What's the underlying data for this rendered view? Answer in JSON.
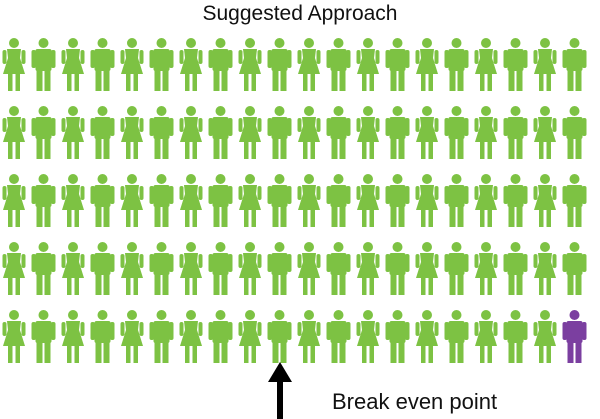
{
  "chart_data": {
    "type": "pictogram",
    "title": "Suggested Approach",
    "rows": 5,
    "columns": 20,
    "total_icons": 100,
    "icon_pattern": [
      "female",
      "male"
    ],
    "categories": [
      "green",
      "purple"
    ],
    "values": [
      99,
      1
    ],
    "colors": {
      "green": "#7dc243",
      "purple": "#7b3fa0"
    },
    "highlighted_icon": {
      "row": 5,
      "column": 20
    },
    "annotation": {
      "text": "Break even point",
      "column": 10,
      "marker": "up-arrow"
    }
  }
}
